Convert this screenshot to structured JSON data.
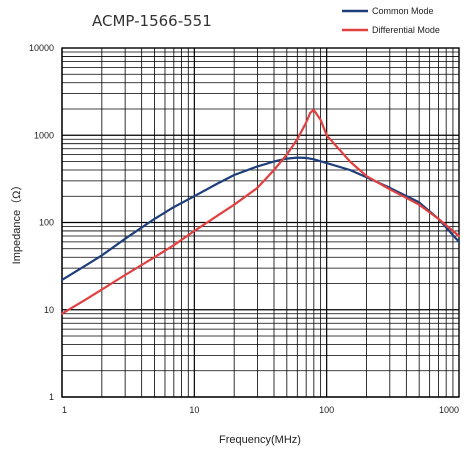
{
  "chart_data": {
    "type": "line",
    "title": "ACMP-1566-551",
    "xlabel": "Frequency(MHz)",
    "ylabel": "Impedance（Ω）",
    "x_scale": "log",
    "y_scale": "log",
    "xlim": [
      1,
      1000
    ],
    "ylim": [
      1,
      10000
    ],
    "x_ticks": [
      1,
      10,
      100,
      1000
    ],
    "x_tick_labels": [
      "1",
      "10",
      "100",
      "1000"
    ],
    "y_ticks": [
      1,
      10,
      100,
      1000,
      10000
    ],
    "y_tick_labels": [
      "1",
      "10",
      "100",
      "1000",
      "10000"
    ],
    "grid": true,
    "legend_position": "top-right",
    "series": [
      {
        "name": "Common Mode",
        "color": "#1f3f7a",
        "x": [
          1,
          1.5,
          2,
          3,
          5,
          7,
          10,
          15,
          20,
          30,
          40,
          50,
          60,
          70,
          80,
          100,
          150,
          200,
          300,
          500,
          700,
          1000
        ],
        "y": [
          22,
          32,
          42,
          65,
          110,
          150,
          200,
          280,
          350,
          440,
          500,
          540,
          555,
          550,
          530,
          480,
          400,
          330,
          250,
          170,
          110,
          60
        ]
      },
      {
        "name": "Differential Mode",
        "color": "#e04040",
        "x": [
          1,
          1.5,
          2,
          3,
          5,
          7,
          10,
          15,
          20,
          30,
          40,
          50,
          60,
          70,
          75,
          80,
          90,
          100,
          150,
          200,
          300,
          500,
          700,
          1000
        ],
        "y": [
          9,
          13,
          17,
          25,
          40,
          55,
          80,
          120,
          160,
          250,
          400,
          600,
          900,
          1400,
          1800,
          1950,
          1500,
          1000,
          500,
          340,
          240,
          160,
          110,
          70
        ]
      }
    ]
  }
}
